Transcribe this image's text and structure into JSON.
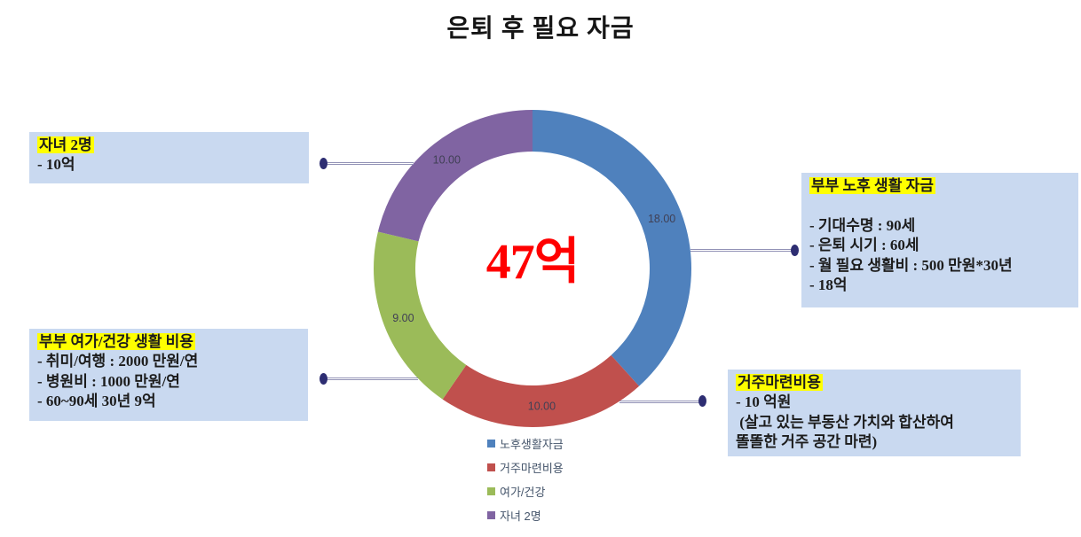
{
  "page": {
    "title": "은퇴 후 필요 자금"
  },
  "chart_data": {
    "type": "pie",
    "subtype": "donut",
    "title": "은퇴 후 필요 자금",
    "center_label": "47억",
    "total": 47,
    "categories": [
      "노후생활자금",
      "거주마련비용",
      "여가/건강",
      "자녀 2명"
    ],
    "values": [
      18,
      10,
      9,
      10
    ],
    "data_labels": [
      "18.00",
      "10.00",
      "9.00",
      "10.00"
    ],
    "colors": [
      "#4F81BD",
      "#C0504D",
      "#9BBB59",
      "#8064A2"
    ],
    "start_angle_deg": 0,
    "direction": "clockwise",
    "donut_hole_ratio": 0.74,
    "legend_position": "bottom",
    "data_label_color": "#404055",
    "legend_text_color": "#44546A"
  },
  "callouts": {
    "children": {
      "title": "자녀 2명",
      "lines": [
        "- 10억"
      ]
    },
    "retirement": {
      "title": "부부 노후 생활 자금",
      "lines": [
        "",
        "- 기대수명 : 90세",
        "- 은퇴 시기 : 60세",
        "- 월 필요 생활비 : 500 만원*30년",
        "- 18억"
      ]
    },
    "leisure": {
      "title": "부부 여가/건강 생활 비용",
      "lines": [
        "- 취미/여행 : 2000 만원/연",
        "- 병원비 : 1000 만원/연",
        "- 60~90세 30년 9억"
      ]
    },
    "housing": {
      "title": "거주마련비용",
      "lines": [
        "- 10 억원",
        " (살고 있는 부동산 가치와 합산하여",
        "똘똘한 거주 공간 마련)"
      ]
    }
  },
  "styles": {
    "callout_bg": "#C9D9F0",
    "highlight_color": "#FFFF00",
    "center_label_color": "#FF0000",
    "connector_line_color": "#9292B6",
    "connector_dot_color": "#2D2D72"
  }
}
